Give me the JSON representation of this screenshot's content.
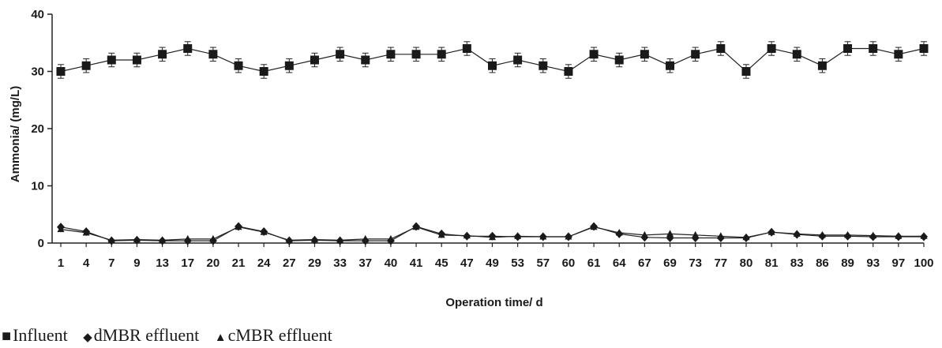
{
  "chart_data": {
    "type": "line",
    "xlabel": "Operation time/ d",
    "ylabel": "Ammonia/ (mg/L)",
    "ylim": [
      0,
      40
    ],
    "yticks": [
      "0",
      "10",
      "20",
      "30",
      "40"
    ],
    "categories": [
      "1",
      "4",
      "7",
      "9",
      "13",
      "17",
      "20",
      "21",
      "24",
      "27",
      "29",
      "33",
      "37",
      "40",
      "41",
      "45",
      "47",
      "49",
      "53",
      "57",
      "60",
      "61",
      "64",
      "67",
      "69",
      "73",
      "77",
      "80",
      "81",
      "83",
      "86",
      "89",
      "93",
      "97",
      "100"
    ],
    "grid": false,
    "legend_position": "bottom-left",
    "series": [
      {
        "name": "Influent",
        "marker": "square",
        "values": [
          30,
          31,
          32,
          32,
          33,
          34,
          33,
          31,
          30,
          31,
          32,
          33,
          32,
          33,
          33,
          33,
          34,
          31,
          32,
          31,
          30,
          33,
          32,
          33,
          31,
          33,
          34,
          30,
          34,
          33,
          31,
          34,
          34,
          33,
          34
        ],
        "error": 1.2
      },
      {
        "name": "dMBR effluent",
        "marker": "diamond",
        "values": [
          2.8,
          2.0,
          0.4,
          0.5,
          0.4,
          0.4,
          0.4,
          2.9,
          2.0,
          0.4,
          0.5,
          0.4,
          0.4,
          0.4,
          2.9,
          1.6,
          1.2,
          1.2,
          1.1,
          1.1,
          1.1,
          2.9,
          1.6,
          1.0,
          0.9,
          0.9,
          0.9,
          0.9,
          1.9,
          1.5,
          1.2,
          1.2,
          1.1,
          1.1,
          1.1
        ]
      },
      {
        "name": "cMBR effluent",
        "marker": "triangle",
        "values": [
          2.4,
          1.8,
          0.5,
          0.6,
          0.5,
          0.7,
          0.7,
          2.8,
          1.9,
          0.5,
          0.6,
          0.5,
          0.7,
          0.7,
          2.8,
          1.4,
          1.3,
          1.0,
          1.2,
          1.1,
          1.1,
          2.8,
          1.8,
          1.4,
          1.6,
          1.4,
          1.2,
          1.0,
          1.9,
          1.6,
          1.4,
          1.4,
          1.3,
          1.2,
          1.2
        ]
      }
    ]
  },
  "legend": [
    {
      "symbol": "■",
      "label": "Influent"
    },
    {
      "symbol": "◆",
      "label": "dMBR effluent"
    },
    {
      "symbol": "▲",
      "label": "cMBR effluent"
    }
  ]
}
